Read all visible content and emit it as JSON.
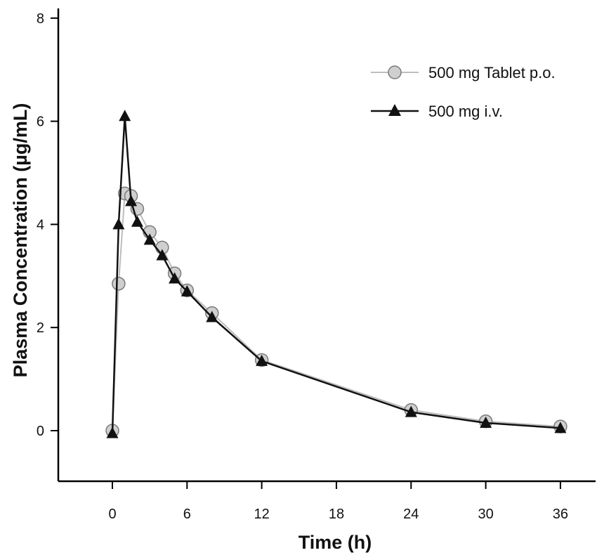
{
  "chart_data": {
    "type": "line",
    "xlabel": "Time (h)",
    "ylabel": "Plasma Concentration (µg/mL)",
    "xlim": [
      -4,
      38
    ],
    "ylim": [
      -1,
      8
    ],
    "xticks": [
      0,
      6,
      12,
      18,
      24,
      30,
      36
    ],
    "yticks": [
      0,
      2,
      4,
      6,
      8
    ],
    "grid": false,
    "legend_position": "top-right",
    "series": [
      {
        "name": "500 mg Tablet p.o.",
        "marker": "circle",
        "color": "#bdbdbd",
        "x": [
          0,
          0.5,
          1,
          1.5,
          2,
          3,
          4,
          5,
          6,
          8,
          12,
          24,
          30,
          36
        ],
        "y": [
          0,
          2.85,
          4.6,
          4.55,
          4.3,
          3.85,
          3.55,
          3.05,
          2.72,
          2.28,
          1.37,
          0.4,
          0.18,
          0.08
        ]
      },
      {
        "name": "500 mg i.v.",
        "marker": "triangle",
        "color": "#111111",
        "x": [
          0,
          0.5,
          1,
          1.5,
          2,
          3,
          4,
          5,
          6,
          8,
          12,
          24,
          30,
          36
        ],
        "y": [
          -0.05,
          4.0,
          6.1,
          4.45,
          4.05,
          3.7,
          3.4,
          2.95,
          2.7,
          2.2,
          1.35,
          0.36,
          0.15,
          0.05
        ]
      }
    ]
  }
}
